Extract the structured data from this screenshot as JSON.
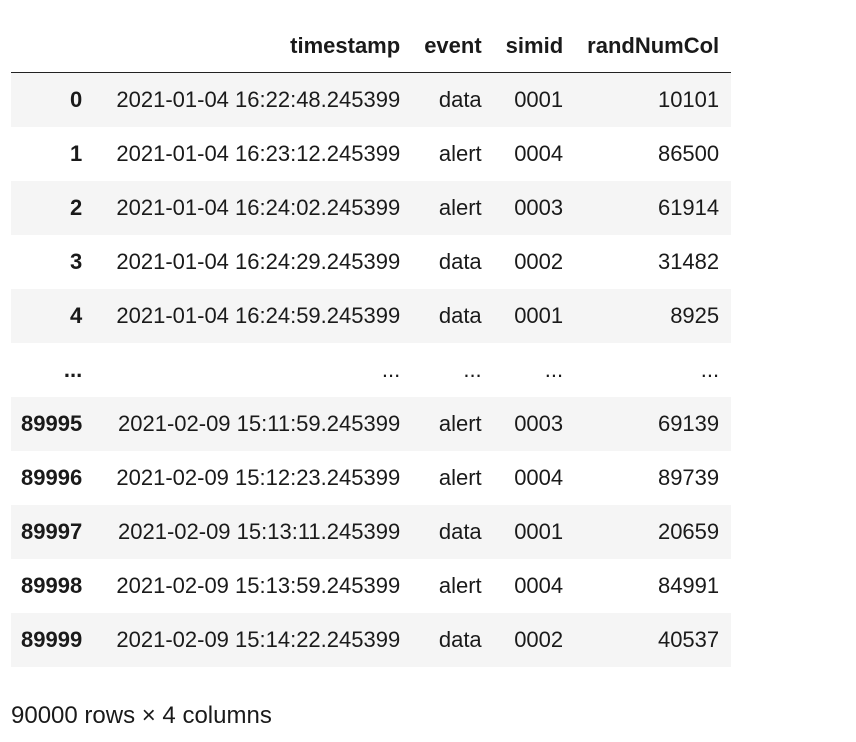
{
  "dataframe": {
    "columns": [
      "timestamp",
      "event",
      "simid",
      "randNumCol"
    ],
    "rows": [
      {
        "index": "0",
        "timestamp": "2021-01-04 16:22:48.245399",
        "event": "data",
        "simid": "0001",
        "randNumCol": "10101"
      },
      {
        "index": "1",
        "timestamp": "2021-01-04 16:23:12.245399",
        "event": "alert",
        "simid": "0004",
        "randNumCol": "86500"
      },
      {
        "index": "2",
        "timestamp": "2021-01-04 16:24:02.245399",
        "event": "alert",
        "simid": "0003",
        "randNumCol": "61914"
      },
      {
        "index": "3",
        "timestamp": "2021-01-04 16:24:29.245399",
        "event": "data",
        "simid": "0002",
        "randNumCol": "31482"
      },
      {
        "index": "4",
        "timestamp": "2021-01-04 16:24:59.245399",
        "event": "data",
        "simid": "0001",
        "randNumCol": "8925"
      },
      {
        "index": "...",
        "timestamp": "...",
        "event": "...",
        "simid": "...",
        "randNumCol": "..."
      },
      {
        "index": "89995",
        "timestamp": "2021-02-09 15:11:59.245399",
        "event": "alert",
        "simid": "0003",
        "randNumCol": "69139"
      },
      {
        "index": "89996",
        "timestamp": "2021-02-09 15:12:23.245399",
        "event": "alert",
        "simid": "0004",
        "randNumCol": "89739"
      },
      {
        "index": "89997",
        "timestamp": "2021-02-09 15:13:11.245399",
        "event": "data",
        "simid": "0001",
        "randNumCol": "20659"
      },
      {
        "index": "89998",
        "timestamp": "2021-02-09 15:13:59.245399",
        "event": "alert",
        "simid": "0004",
        "randNumCol": "84991"
      },
      {
        "index": "89999",
        "timestamp": "2021-02-09 15:14:22.245399",
        "event": "data",
        "simid": "0002",
        "randNumCol": "40537"
      }
    ],
    "shape_text": "90000 rows × 4 columns"
  },
  "colors": {
    "stripe": "#f5f5f5",
    "text": "#1a1a1a",
    "header_rule": "#222222"
  }
}
